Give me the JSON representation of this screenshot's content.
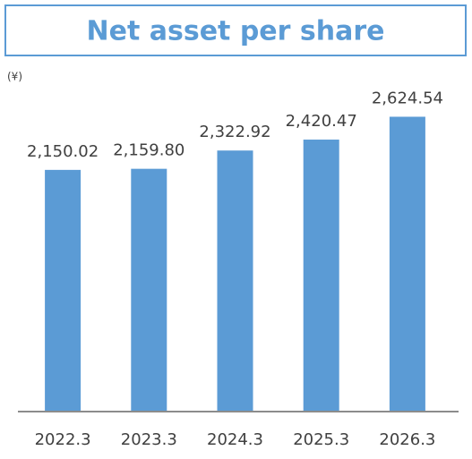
{
  "chart_data": {
    "type": "bar",
    "title": "Net asset per share",
    "y_label": "(¥)",
    "categories": [
      "2022.3",
      "2023.3",
      "2024.3",
      "2025.3",
      "2026.3"
    ],
    "values": [
      2150.02,
      2159.8,
      2322.92,
      2420.47,
      2624.54
    ],
    "value_labels": [
      "2,150.02",
      "2,159.80",
      "2,322.92",
      "2,420.47",
      "2,624.54"
    ],
    "color": "#5b9bd5",
    "ylim": [
      0,
      2900
    ]
  }
}
